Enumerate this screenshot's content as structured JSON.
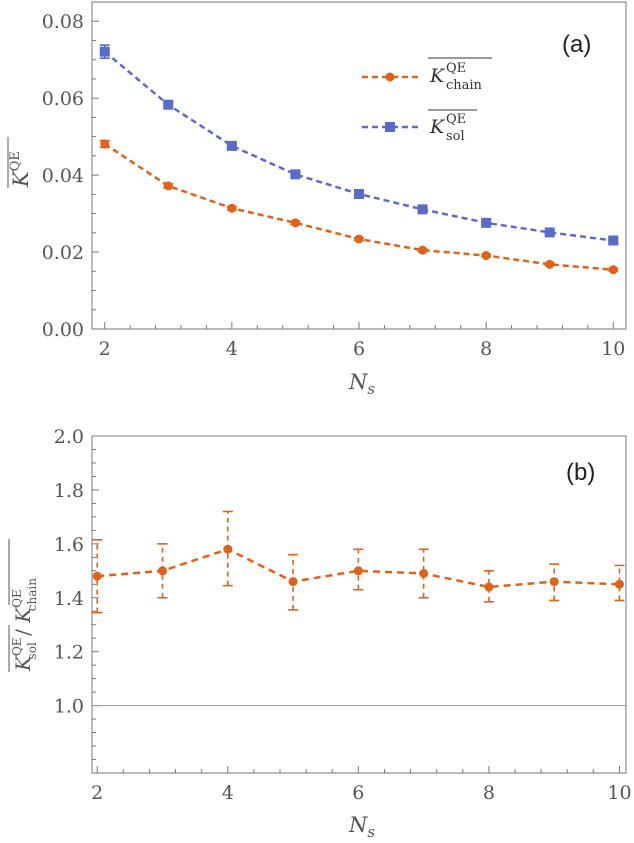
{
  "chart_data": [
    {
      "type": "line",
      "panel_label": "(a)",
      "xlabel": "N",
      "xlabel_sub": "s",
      "ylabel": {
        "symbol": "K",
        "superscript": "QE"
      },
      "x": [
        2,
        3,
        4,
        5,
        6,
        7,
        8,
        9,
        10
      ],
      "xlim": [
        1.8,
        10.2
      ],
      "ylim": [
        0.0,
        0.085
      ],
      "xticks": [
        2,
        4,
        6,
        8,
        10
      ],
      "yticks": [
        0.0,
        0.02,
        0.04,
        0.06,
        0.08
      ],
      "ytick_labels": [
        "0.00",
        "0.02",
        "0.04",
        "0.06",
        "0.08"
      ],
      "legend_position": "top-right",
      "series": [
        {
          "name": "chain",
          "legend": {
            "symbol": "K",
            "superscript": "QE",
            "subscript": "chain"
          },
          "marker": "circle",
          "color": "#E0611A",
          "values": [
            0.0481,
            0.0372,
            0.0314,
            0.0276,
            0.0234,
            0.0205,
            0.0191,
            0.0168,
            0.0154
          ],
          "errors": [
            0.0009,
            0.0005,
            0.0004,
            0.0004,
            0.0003,
            0.0003,
            0.0003,
            0.0003,
            0.0003
          ]
        },
        {
          "name": "sol",
          "legend": {
            "symbol": "K",
            "superscript": "QE",
            "subscript": "sol"
          },
          "marker": "square",
          "color": "#5A6BC8",
          "values": [
            0.0721,
            0.0583,
            0.0476,
            0.0402,
            0.0351,
            0.0311,
            0.0276,
            0.0251,
            0.023
          ],
          "errors": [
            0.0017,
            0.0004,
            0.0004,
            0.0004,
            0.0003,
            0.0003,
            0.0003,
            0.0003,
            0.0003
          ]
        }
      ]
    },
    {
      "type": "line",
      "panel_label": "(b)",
      "xlabel": "N",
      "xlabel_sub": "s",
      "ylabel": {
        "num": "K",
        "num_sup": "QE",
        "num_sub": "sol",
        "den": "K",
        "den_sup": "QE",
        "den_sub": "chain"
      },
      "x": [
        2,
        3,
        4,
        5,
        6,
        7,
        8,
        9,
        10
      ],
      "xlim": [
        1.92,
        10.1
      ],
      "ylim": [
        0.75,
        2.0
      ],
      "xticks": [
        2,
        4,
        6,
        8,
        10
      ],
      "yticks": [
        1.0,
        1.2,
        1.4,
        1.6,
        1.8,
        2.0
      ],
      "ytick_labels": [
        "1.0",
        "1.2",
        "1.4",
        "1.6",
        "1.8",
        "2.0"
      ],
      "reference_line": 1.0,
      "series": [
        {
          "name": "ratio",
          "marker": "circle",
          "color": "#E0611A",
          "values": [
            1.48,
            1.5,
            1.58,
            1.46,
            1.5,
            1.49,
            1.44,
            1.46,
            1.45
          ],
          "err_low": [
            1.345,
            1.4,
            1.445,
            1.355,
            1.43,
            1.4,
            1.385,
            1.39,
            1.39
          ],
          "err_high": [
            1.615,
            1.6,
            1.72,
            1.56,
            1.58,
            1.58,
            1.5,
            1.525,
            1.52
          ]
        }
      ]
    }
  ]
}
